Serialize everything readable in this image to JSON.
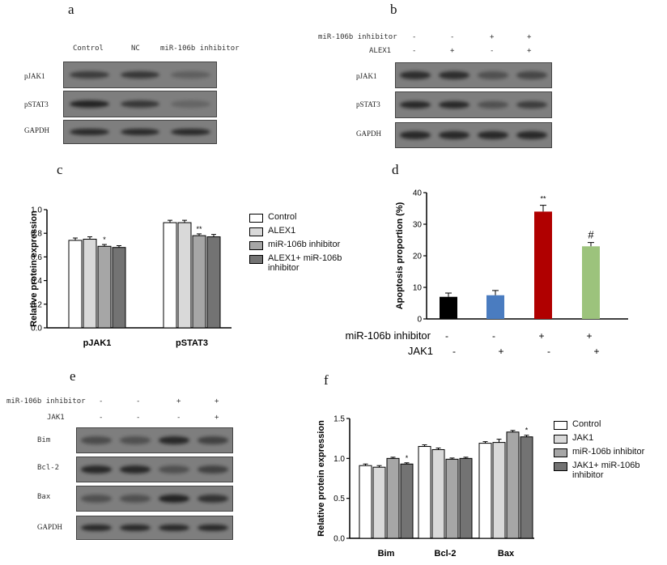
{
  "panel_letters": {
    "a": "a",
    "b": "b",
    "c": "c",
    "d": "d",
    "e": "e",
    "f": "f"
  },
  "blot_a": {
    "lanes": [
      "Control",
      "NC",
      "miR-106b inhibitor"
    ],
    "rows": [
      {
        "label": "pJAK1",
        "intensity": [
          0.65,
          0.7,
          0.3
        ]
      },
      {
        "label": "pSTAT3",
        "intensity": [
          0.9,
          0.7,
          0.25
        ]
      },
      {
        "label": "GAPDH",
        "intensity": [
          0.85,
          0.85,
          0.85
        ]
      }
    ]
  },
  "blot_b": {
    "conditions": [
      {
        "label": "miR-106b inhibitor",
        "signs": [
          "-",
          "-",
          "+",
          "+"
        ]
      },
      {
        "label": "ALEX1",
        "signs": [
          "-",
          "+",
          "-",
          "+"
        ]
      }
    ],
    "rows": [
      {
        "label": "pJAK1",
        "intensity": [
          0.8,
          0.8,
          0.45,
          0.55
        ]
      },
      {
        "label": "pSTAT3",
        "intensity": [
          0.85,
          0.85,
          0.45,
          0.65
        ]
      },
      {
        "label": "GAPDH",
        "intensity": [
          0.85,
          0.85,
          0.85,
          0.85
        ]
      }
    ]
  },
  "blot_e": {
    "conditions": [
      {
        "label": "miR-106b inhibitor",
        "signs": [
          "-",
          "-",
          "+",
          "+"
        ]
      },
      {
        "label": "JAK1",
        "signs": [
          "-",
          "-",
          "-",
          "+"
        ]
      }
    ],
    "rows": [
      {
        "label": "Bim",
        "intensity": [
          0.5,
          0.45,
          0.85,
          0.6
        ]
      },
      {
        "label": "Bcl-2",
        "intensity": [
          0.85,
          0.85,
          0.45,
          0.6
        ]
      },
      {
        "label": "Bax",
        "intensity": [
          0.45,
          0.45,
          0.9,
          0.75
        ]
      },
      {
        "label": "GAPDH",
        "intensity": [
          0.85,
          0.85,
          0.85,
          0.85
        ]
      }
    ]
  },
  "chart_data": [
    {
      "panel": "c",
      "type": "bar",
      "title": "",
      "xlabel": "",
      "ylabel": "Relative protein expression",
      "ylim": [
        0,
        1.0
      ],
      "yticks": [
        "0.0",
        "0.2",
        "0.4",
        "0.6",
        "0.8",
        "1.0"
      ],
      "categories": [
        "pJAK1",
        "pSTAT3"
      ],
      "series": [
        {
          "name": "Control",
          "values": [
            0.74,
            0.89
          ],
          "errors": [
            0.02,
            0.02
          ],
          "color": "#ffffff"
        },
        {
          "name": "ALEX1",
          "values": [
            0.75,
            0.89
          ],
          "errors": [
            0.02,
            0.02
          ],
          "color": "#d9d9d9"
        },
        {
          "name": "miR-106b inhibitor",
          "values": [
            0.69,
            0.78
          ],
          "errors": [
            0.015,
            0.015
          ],
          "color": "#a6a6a6"
        },
        {
          "name": "ALEX1+ miR-106b inhibitor",
          "values": [
            0.68,
            0.77
          ],
          "errors": [
            0.015,
            0.02
          ],
          "color": "#737373"
        }
      ],
      "annotations": [
        {
          "category": "pJAK1",
          "series": "miR-106b inhibitor",
          "text": "*"
        },
        {
          "category": "pSTAT3",
          "series": "miR-106b inhibitor",
          "text": "**"
        }
      ],
      "grid": false,
      "legend": "right"
    },
    {
      "panel": "d",
      "type": "bar",
      "title": "",
      "xlabel": "",
      "ylabel": "Apoptosis proportion (%)",
      "ylim": [
        0,
        40
      ],
      "yticks": [
        "0",
        "10",
        "20",
        "30",
        "40"
      ],
      "values": [
        7,
        7.5,
        34,
        23
      ],
      "errors": [
        1.2,
        1.5,
        2,
        1.2
      ],
      "colors": [
        "#000000",
        "#4a7cc0",
        "#b00000",
        "#9cc37c"
      ],
      "condition_rows": [
        {
          "label": "miR-106b inhibitor",
          "signs": [
            "-",
            "-",
            "+",
            "+"
          ]
        },
        {
          "label": "JAK1",
          "signs": [
            "-",
            "+",
            "-",
            "+"
          ]
        }
      ],
      "annotations": [
        {
          "index": 2,
          "text": "**"
        },
        {
          "index": 3,
          "text": "#"
        }
      ],
      "grid": false
    },
    {
      "panel": "f",
      "type": "bar",
      "title": "",
      "xlabel": "",
      "ylabel": "Relative protein expression",
      "ylim": [
        0,
        1.5
      ],
      "yticks": [
        "0.0",
        "0.5",
        "1.0",
        "1.5"
      ],
      "categories": [
        "Bim",
        "Bcl-2",
        "Bax"
      ],
      "series": [
        {
          "name": "Control",
          "values": [
            0.91,
            1.15,
            1.19
          ],
          "errors": [
            0.02,
            0.02,
            0.02
          ],
          "color": "#ffffff"
        },
        {
          "name": "JAK1",
          "values": [
            0.89,
            1.11,
            1.2
          ],
          "errors": [
            0.02,
            0.02,
            0.04
          ],
          "color": "#d9d9d9"
        },
        {
          "name": "miR-106b inhibitor",
          "values": [
            1.0,
            0.99,
            1.33
          ],
          "errors": [
            0.015,
            0.015,
            0.02
          ],
          "color": "#a6a6a6"
        },
        {
          "name": "JAK1+ miR-106b inhibitor",
          "values": [
            0.93,
            1.0,
            1.27
          ],
          "errors": [
            0.015,
            0.015,
            0.02
          ],
          "color": "#737373"
        }
      ],
      "annotations": [
        {
          "category": "Bim",
          "series": "JAK1+ miR-106b inhibitor",
          "text": "*"
        },
        {
          "category": "Bax",
          "series": "JAK1+ miR-106b inhibitor",
          "text": "*"
        }
      ],
      "grid": false,
      "legend": "right"
    }
  ]
}
